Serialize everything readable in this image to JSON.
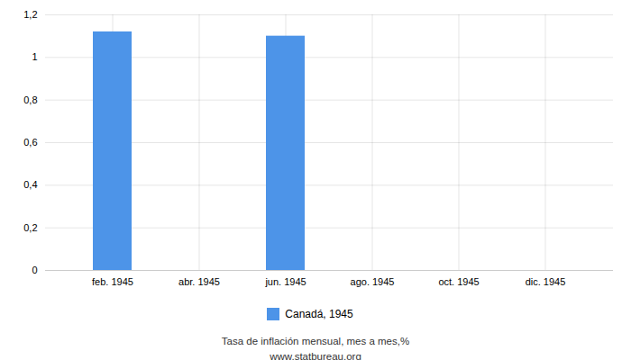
{
  "chart_data": {
    "type": "bar",
    "categories": [
      "feb. 1945",
      "abr. 1945",
      "jun. 1945",
      "ago. 1945",
      "oct. 1945",
      "dic. 1945"
    ],
    "series": [
      {
        "name": "Canadá, 1945",
        "color": "#4d94e8",
        "values": [
          1.12,
          0,
          1.1,
          0,
          0,
          0
        ]
      }
    ],
    "ylim": [
      0,
      1.2
    ],
    "yticks": [
      0,
      {
        "value": 0.2,
        "label": "0,2"
      },
      {
        "value": 0.4,
        "label": "0,4"
      },
      {
        "value": 0.6,
        "label": "0,6"
      },
      {
        "value": 0.8,
        "label": "0,8"
      },
      1,
      {
        "value": 1.2,
        "label": "1,2"
      }
    ],
    "grid": true,
    "legend": "bottom",
    "annotations": [
      "Tasa de inflación mensual, mes a mes,%",
      "www.statbureau.org"
    ]
  }
}
